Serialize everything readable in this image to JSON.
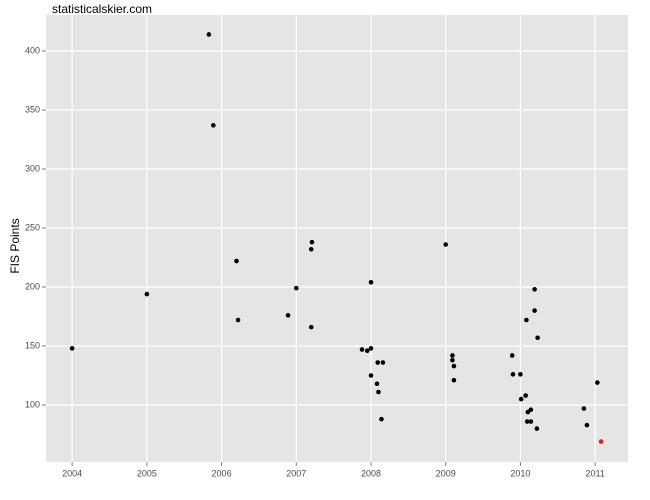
{
  "chart_data": {
    "type": "scatter",
    "title": "statisticalskier.com",
    "y_label": "FIS Points",
    "xlim": [
      2003.65,
      2011.44
    ],
    "xticks": [
      2004,
      2005,
      2006,
      2007,
      2008,
      2009,
      2010,
      2011
    ],
    "ylim": [
      51.7,
      430.5
    ],
    "yticks": [
      100,
      150,
      200,
      250,
      300,
      350,
      400
    ],
    "grid": true,
    "series": [
      {
        "color": "#000000",
        "x": [
          2004.0,
          2005.0,
          2005.83,
          2005.89,
          2006.2,
          2006.22,
          2006.89,
          2007.0,
          2007.21,
          2007.2,
          2007.2,
          2008.0,
          2007.88,
          2007.95,
          2008.0,
          2008.0,
          2008.08,
          2008.09,
          2008.16,
          2008.1,
          2008.14,
          2009.0,
          2009.09,
          2009.09,
          2009.11,
          2009.11,
          2009.89,
          2009.9,
          2010.0,
          2010.01,
          2010.07,
          2010.08,
          2010.19,
          2010.19,
          2010.23,
          2010.1,
          2010.14,
          2010.09,
          2010.14,
          2010.22,
          2010.85,
          2010.89,
          2011.03
        ],
        "values": [
          148,
          194,
          414,
          337,
          222,
          172,
          176,
          199,
          238,
          232,
          166,
          204,
          147,
          146,
          148,
          125,
          118,
          136,
          136,
          111,
          88,
          236,
          142,
          138,
          133,
          121,
          142,
          126,
          126,
          105,
          108,
          172,
          198,
          180,
          157,
          94,
          96,
          86,
          86,
          80,
          97,
          83,
          119
        ]
      },
      {
        "color": "#e41a1c",
        "x": [
          2011.08
        ],
        "values": [
          69
        ]
      }
    ]
  }
}
